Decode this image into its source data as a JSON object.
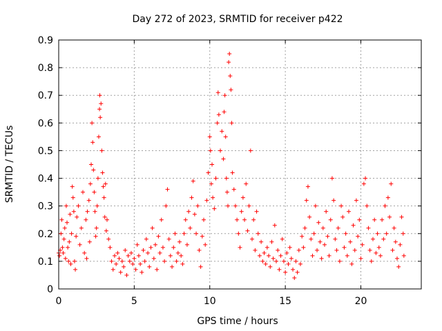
{
  "chart_data": {
    "type": "scatter",
    "title": "Day 272 of 2023, SRMTID for receiver p422",
    "xlabel": "GPS time / hours",
    "ylabel": "SRMTID / TECUs",
    "xlim": [
      0,
      24
    ],
    "ylim": [
      0,
      0.9
    ],
    "xticks": [
      0,
      5,
      10,
      15,
      20
    ],
    "xtick_labels": [
      "0",
      "5",
      "10",
      "15",
      "20"
    ],
    "yticks": [
      0,
      0.1,
      0.2,
      0.3,
      0.4,
      0.5,
      0.6,
      0.7,
      0.8,
      0.9
    ],
    "ytick_labels": [
      "0",
      "0.1",
      "0.2",
      "0.3",
      "0.4",
      "0.5",
      "0.6",
      "0.7",
      "0.8",
      "0.9"
    ],
    "grid": true,
    "marker": "+",
    "series": [
      {
        "name": "SRMTID",
        "color": "#ff0000",
        "points": [
          [
            0.0,
            0.13
          ],
          [
            0.05,
            0.12
          ],
          [
            0.1,
            0.14
          ],
          [
            0.15,
            0.2
          ],
          [
            0.2,
            0.25
          ],
          [
            0.25,
            0.15
          ],
          [
            0.3,
            0.13
          ],
          [
            0.35,
            0.18
          ],
          [
            0.4,
            0.22
          ],
          [
            0.45,
            0.11
          ],
          [
            0.5,
            0.3
          ],
          [
            0.55,
            0.24
          ],
          [
            0.6,
            0.15
          ],
          [
            0.65,
            0.1
          ],
          [
            0.7,
            0.17
          ],
          [
            0.75,
            0.27
          ],
          [
            0.8,
            0.09
          ],
          [
            0.85,
            0.2
          ],
          [
            0.9,
            0.37
          ],
          [
            0.95,
            0.33
          ],
          [
            1.0,
            0.28
          ],
          [
            1.05,
            0.1
          ],
          [
            1.1,
            0.07
          ],
          [
            1.15,
            0.19
          ],
          [
            1.2,
            0.26
          ],
          [
            1.3,
            0.3
          ],
          [
            1.4,
            0.16
          ],
          [
            1.5,
            0.22
          ],
          [
            1.6,
            0.35
          ],
          [
            1.7,
            0.13
          ],
          [
            1.8,
            0.25
          ],
          [
            1.85,
            0.11
          ],
          [
            1.9,
            0.28
          ],
          [
            2.0,
            0.32
          ],
          [
            2.05,
            0.17
          ],
          [
            2.1,
            0.38
          ],
          [
            2.15,
            0.45
          ],
          [
            2.2,
            0.6
          ],
          [
            2.25,
            0.53
          ],
          [
            2.3,
            0.43
          ],
          [
            2.35,
            0.35
          ],
          [
            2.4,
            0.28
          ],
          [
            2.45,
            0.19
          ],
          [
            2.5,
            0.22
          ],
          [
            2.55,
            0.3
          ],
          [
            2.6,
            0.4
          ],
          [
            2.65,
            0.55
          ],
          [
            2.7,
            0.65
          ],
          [
            2.72,
            0.7
          ],
          [
            2.75,
            0.62
          ],
          [
            2.8,
            0.67
          ],
          [
            2.85,
            0.5
          ],
          [
            2.9,
            0.42
          ],
          [
            2.95,
            0.37
          ],
          [
            3.0,
            0.33
          ],
          [
            3.05,
            0.26
          ],
          [
            3.1,
            0.38
          ],
          [
            3.15,
            0.21
          ],
          [
            3.2,
            0.25
          ],
          [
            3.3,
            0.18
          ],
          [
            3.4,
            0.15
          ],
          [
            3.5,
            0.1
          ],
          [
            3.6,
            0.07
          ],
          [
            3.7,
            0.12
          ],
          [
            3.8,
            0.09
          ],
          [
            3.9,
            0.13
          ],
          [
            4.0,
            0.11
          ],
          [
            4.1,
            0.06
          ],
          [
            4.2,
            0.1
          ],
          [
            4.3,
            0.08
          ],
          [
            4.4,
            0.14
          ],
          [
            4.5,
            0.05
          ],
          [
            4.6,
            0.12
          ],
          [
            4.7,
            0.1
          ],
          [
            4.8,
            0.13
          ],
          [
            4.9,
            0.09
          ],
          [
            5.0,
            0.11
          ],
          [
            5.1,
            0.07
          ],
          [
            5.2,
            0.16
          ],
          [
            5.3,
            0.12
          ],
          [
            5.4,
            0.09
          ],
          [
            5.5,
            0.06
          ],
          [
            5.6,
            0.14
          ],
          [
            5.7,
            0.1
          ],
          [
            5.8,
            0.18
          ],
          [
            5.9,
            0.13
          ],
          [
            6.0,
            0.08
          ],
          [
            6.1,
            0.15
          ],
          [
            6.2,
            0.22
          ],
          [
            6.3,
            0.11
          ],
          [
            6.4,
            0.16
          ],
          [
            6.5,
            0.07
          ],
          [
            6.6,
            0.19
          ],
          [
            6.7,
            0.13
          ],
          [
            6.8,
            0.25
          ],
          [
            6.9,
            0.15
          ],
          [
            7.0,
            0.1
          ],
          [
            7.1,
            0.3
          ],
          [
            7.2,
            0.36
          ],
          [
            7.3,
            0.18
          ],
          [
            7.4,
            0.12
          ],
          [
            7.5,
            0.08
          ],
          [
            7.6,
            0.15
          ],
          [
            7.7,
            0.2
          ],
          [
            7.8,
            0.1
          ],
          [
            7.9,
            0.13
          ],
          [
            8.0,
            0.17
          ],
          [
            8.1,
            0.12
          ],
          [
            8.2,
            0.09
          ],
          [
            8.3,
            0.2
          ],
          [
            8.4,
            0.25
          ],
          [
            8.5,
            0.16
          ],
          [
            8.6,
            0.28
          ],
          [
            8.7,
            0.22
          ],
          [
            8.8,
            0.33
          ],
          [
            8.9,
            0.39
          ],
          [
            9.0,
            0.27
          ],
          [
            9.1,
            0.2
          ],
          [
            9.2,
            0.3
          ],
          [
            9.3,
            0.14
          ],
          [
            9.4,
            0.08
          ],
          [
            9.5,
            0.19
          ],
          [
            9.6,
            0.25
          ],
          [
            9.7,
            0.16
          ],
          [
            9.8,
            0.32
          ],
          [
            9.9,
            0.42
          ],
          [
            10.0,
            0.55
          ],
          [
            10.05,
            0.5
          ],
          [
            10.1,
            0.38
          ],
          [
            10.15,
            0.45
          ],
          [
            10.2,
            0.33
          ],
          [
            10.3,
            0.29
          ],
          [
            10.4,
            0.4
          ],
          [
            10.5,
            0.6
          ],
          [
            10.55,
            0.71
          ],
          [
            10.6,
            0.63
          ],
          [
            10.7,
            0.5
          ],
          [
            10.8,
            0.57
          ],
          [
            10.9,
            0.47
          ],
          [
            10.95,
            0.64
          ],
          [
            11.0,
            0.7
          ],
          [
            11.05,
            0.55
          ],
          [
            11.1,
            0.4
          ],
          [
            11.15,
            0.35
          ],
          [
            11.2,
            0.3
          ],
          [
            11.25,
            0.82
          ],
          [
            11.3,
            0.85
          ],
          [
            11.35,
            0.77
          ],
          [
            11.4,
            0.72
          ],
          [
            11.45,
            0.6
          ],
          [
            11.5,
            0.42
          ],
          [
            11.6,
            0.36
          ],
          [
            11.7,
            0.3
          ],
          [
            11.8,
            0.25
          ],
          [
            11.9,
            0.2
          ],
          [
            12.0,
            0.15
          ],
          [
            12.1,
            0.28
          ],
          [
            12.2,
            0.33
          ],
          [
            12.3,
            0.25
          ],
          [
            12.4,
            0.38
          ],
          [
            12.5,
            0.21
          ],
          [
            12.6,
            0.3
          ],
          [
            12.7,
            0.5
          ],
          [
            12.8,
            0.18
          ],
          [
            12.9,
            0.25
          ],
          [
            13.0,
            0.14
          ],
          [
            13.1,
            0.28
          ],
          [
            13.2,
            0.2
          ],
          [
            13.3,
            0.12
          ],
          [
            13.4,
            0.17
          ],
          [
            13.5,
            0.1
          ],
          [
            13.6,
            0.13
          ],
          [
            13.7,
            0.09
          ],
          [
            13.8,
            0.15
          ],
          [
            13.9,
            0.12
          ],
          [
            14.0,
            0.08
          ],
          [
            14.1,
            0.17
          ],
          [
            14.2,
            0.11
          ],
          [
            14.3,
            0.23
          ],
          [
            14.4,
            0.1
          ],
          [
            14.5,
            0.14
          ],
          [
            14.6,
            0.07
          ],
          [
            14.7,
            0.12
          ],
          [
            14.8,
            0.18
          ],
          [
            14.9,
            0.1
          ],
          [
            15.0,
            0.06
          ],
          [
            15.1,
            0.13
          ],
          [
            15.2,
            0.09
          ],
          [
            15.3,
            0.15
          ],
          [
            15.4,
            0.11
          ],
          [
            15.5,
            0.07
          ],
          [
            15.6,
            0.04
          ],
          [
            15.7,
            0.1
          ],
          [
            15.8,
            0.06
          ],
          [
            15.9,
            0.14
          ],
          [
            16.0,
            0.09
          ],
          [
            16.1,
            0.19
          ],
          [
            16.2,
            0.15
          ],
          [
            16.3,
            0.22
          ],
          [
            16.4,
            0.32
          ],
          [
            16.5,
            0.37
          ],
          [
            16.6,
            0.26
          ],
          [
            16.7,
            0.18
          ],
          [
            16.8,
            0.12
          ],
          [
            16.9,
            0.2
          ],
          [
            17.0,
            0.3
          ],
          [
            17.1,
            0.14
          ],
          [
            17.2,
            0.24
          ],
          [
            17.3,
            0.17
          ],
          [
            17.4,
            0.11
          ],
          [
            17.5,
            0.22
          ],
          [
            17.6,
            0.16
          ],
          [
            17.7,
            0.28
          ],
          [
            17.8,
            0.19
          ],
          [
            17.9,
            0.12
          ],
          [
            18.0,
            0.25
          ],
          [
            18.1,
            0.4
          ],
          [
            18.2,
            0.32
          ],
          [
            18.3,
            0.18
          ],
          [
            18.4,
            0.14
          ],
          [
            18.5,
            0.22
          ],
          [
            18.6,
            0.1
          ],
          [
            18.7,
            0.3
          ],
          [
            18.8,
            0.26
          ],
          [
            18.9,
            0.15
          ],
          [
            19.0,
            0.2
          ],
          [
            19.1,
            0.12
          ],
          [
            19.2,
            0.28
          ],
          [
            19.3,
            0.17
          ],
          [
            19.4,
            0.09
          ],
          [
            19.5,
            0.23
          ],
          [
            19.6,
            0.14
          ],
          [
            19.7,
            0.32
          ],
          [
            19.8,
            0.19
          ],
          [
            19.9,
            0.25
          ],
          [
            20.0,
            0.11
          ],
          [
            20.1,
            0.16
          ],
          [
            20.2,
            0.38
          ],
          [
            20.3,
            0.4
          ],
          [
            20.4,
            0.3
          ],
          [
            20.5,
            0.22
          ],
          [
            20.6,
            0.14
          ],
          [
            20.7,
            0.1
          ],
          [
            20.8,
            0.18
          ],
          [
            20.9,
            0.25
          ],
          [
            21.0,
            0.13
          ],
          [
            21.1,
            0.2
          ],
          [
            21.2,
            0.15
          ],
          [
            21.3,
            0.12
          ],
          [
            21.4,
            0.25
          ],
          [
            21.5,
            0.18
          ],
          [
            21.6,
            0.3
          ],
          [
            21.7,
            0.2
          ],
          [
            21.8,
            0.33
          ],
          [
            21.9,
            0.26
          ],
          [
            22.0,
            0.38
          ],
          [
            22.1,
            0.14
          ],
          [
            22.2,
            0.22
          ],
          [
            22.3,
            0.17
          ],
          [
            22.4,
            0.11
          ],
          [
            22.5,
            0.08
          ],
          [
            22.6,
            0.16
          ],
          [
            22.7,
            0.26
          ],
          [
            22.8,
            0.2
          ],
          [
            22.85,
            0.12
          ]
        ]
      }
    ]
  }
}
